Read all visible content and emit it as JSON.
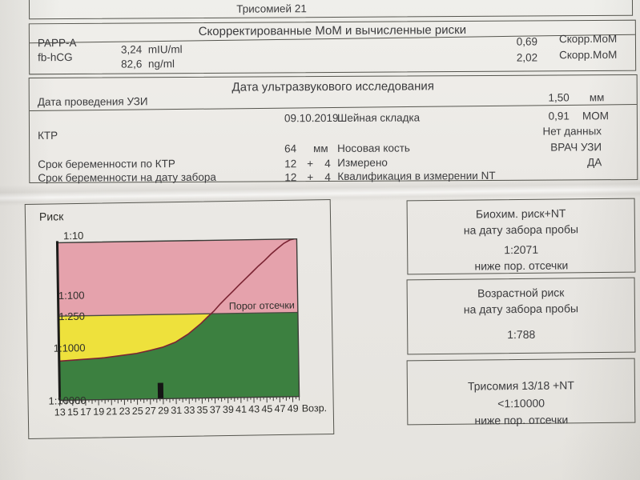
{
  "top_box": {
    "title": "Трисомией 21"
  },
  "mom_section": {
    "header": "Скорректированные МоМ и вычисленные риски",
    "rows": [
      {
        "analyte": "PAPP-A",
        "value": "3,24",
        "unit": "mIU/ml",
        "corr_value": "0,69",
        "corr_label": "Скорр.МоМ"
      },
      {
        "analyte": "fb-hCG",
        "value": "82,6",
        "unit": "ng/ml",
        "corr_value": "2,02",
        "corr_label": "Скорр.МоМ"
      }
    ]
  },
  "uzi_section": {
    "header": "Дата ультразвукового исследования",
    "date_label": "Дата проведения УЗИ",
    "date_value": "09.10.2019",
    "nt_label": "Шейная складка",
    "nt_mm_value": "1,50",
    "nt_mm_unit": "мм",
    "nt_mom_value": "0,91",
    "nt_mom_unit": "МОМ",
    "ktr_label": "КТР",
    "ktr_value": "64",
    "ktr_unit": "мм",
    "nasal_label": "Носовая кость",
    "nasal_value": "Нет данных",
    "ga_by_ktr_label": "Срок беременности по КТР",
    "ga_by_ktr_weeks": "12",
    "ga_plus": "+",
    "ga_by_ktr_days": "4",
    "measured_label": "Измерено",
    "measured_value": "ВРАЧ УЗИ",
    "ga_sample_label": "Срок беременности на дату забора",
    "ga_sample_weeks": "12",
    "ga_sample_days": "4",
    "nt_qual_label": "Квалификация в измерении NT",
    "nt_qual_value": "ДА"
  },
  "result_panels": [
    {
      "lines": [
        "Биохим. риск+NT",
        "на дату забора пробы",
        "1:2071",
        "ниже пор. отсечки"
      ]
    },
    {
      "lines": [
        "Возрастной риск",
        "на дату забора пробы",
        "1:788"
      ]
    },
    {
      "lines": [
        "Трисомия 13/18 +NT",
        "<1:10000",
        "ниже пор. отсечки"
      ]
    }
  ],
  "chart_data": {
    "type": "area",
    "title": "Риск",
    "x_axis_label": "Возр.",
    "x_range": [
      13,
      50
    ],
    "x_tick_labels": [
      13,
      15,
      17,
      19,
      21,
      23,
      25,
      27,
      29,
      31,
      33,
      35,
      37,
      39,
      41,
      43,
      45,
      47,
      49
    ],
    "y_scale": "log-risk (1:N)",
    "y_ticks": [
      {
        "label": "1:10",
        "denom": 10
      },
      {
        "label": "1:100",
        "denom": 100
      },
      {
        "label": "1:250",
        "denom": 250
      },
      {
        "label": "1:1000",
        "denom": 1000
      },
      {
        "label": "1:10000",
        "denom": 10000
      }
    ],
    "threshold": {
      "label": "Порог отсечки",
      "denom": 250
    },
    "curve_points": [
      [
        13,
        1800
      ],
      [
        20,
        1600
      ],
      [
        25,
        1350
      ],
      [
        27,
        1200
      ],
      [
        29,
        1050
      ],
      [
        31,
        850
      ],
      [
        33,
        600
      ],
      [
        35,
        380
      ],
      [
        36,
        290
      ],
      [
        37,
        225
      ],
      [
        38,
        165
      ],
      [
        39,
        125
      ],
      [
        40,
        95
      ],
      [
        41,
        72
      ],
      [
        42,
        55
      ],
      [
        43,
        42
      ],
      [
        44,
        32
      ],
      [
        45,
        25
      ],
      [
        46,
        19
      ],
      [
        47,
        15
      ],
      [
        48,
        12
      ],
      [
        49,
        10.3
      ],
      [
        49.6,
        10
      ]
    ],
    "marker": {
      "age": 28.6,
      "from_denom": 10000,
      "to_denom": 5000
    },
    "colors": {
      "above_threshold": "#e5a2ac",
      "between": "#eee13c",
      "below": "#3c8040",
      "curve": "#7b2433",
      "threshold_line": "#4a4a42",
      "marker": "#151515",
      "axis": "#3c3c38"
    }
  }
}
